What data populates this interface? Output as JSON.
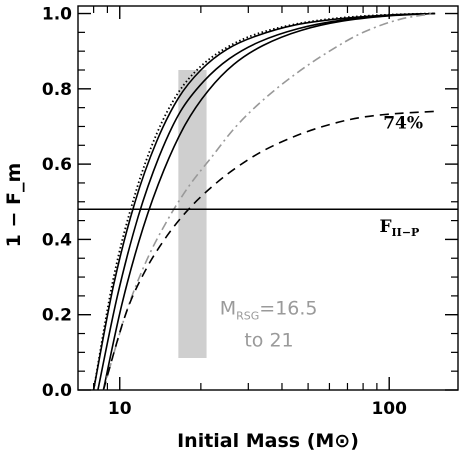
{
  "chart_data": {
    "type": "line",
    "xlabel": "Initial Mass (M⊙)",
    "ylabel": "1 − F_m",
    "xscale": "log",
    "xlim": [
      7,
      180
    ],
    "ylim": [
      0,
      1.02
    ],
    "x_tick_labels": [
      {
        "value": 10,
        "label": "10"
      },
      {
        "value": 100,
        "label": "100"
      }
    ],
    "x_minor_ticks": [
      8,
      9,
      20,
      30,
      40,
      50,
      60,
      70,
      80,
      90
    ],
    "y_tick_labels": [
      {
        "value": 0.0,
        "label": "0.0"
      },
      {
        "value": 0.2,
        "label": "0.2"
      },
      {
        "value": 0.4,
        "label": "0.4"
      },
      {
        "value": 0.6,
        "label": "0.6"
      },
      {
        "value": 0.8,
        "label": "0.8"
      },
      {
        "value": 1.0,
        "label": "1.0"
      }
    ],
    "y_minor_step": 0.05,
    "series": [
      {
        "style": "dotted",
        "color": "#000000",
        "x": [
          8.0,
          9.5,
          11.4,
          13.7,
          16.5,
          20,
          25,
          32,
          45,
          65,
          100,
          148
        ],
        "y": [
          0.0,
          0.3,
          0.52,
          0.68,
          0.79,
          0.86,
          0.91,
          0.945,
          0.972,
          0.988,
          0.997,
          1.0
        ]
      },
      {
        "style": "solid",
        "color": "#000000",
        "x": [
          8.0,
          9.5,
          11.4,
          13.7,
          16.5,
          20,
          25,
          32,
          45,
          65,
          100,
          148
        ],
        "y": [
          0.0,
          0.28,
          0.5,
          0.66,
          0.775,
          0.85,
          0.905,
          0.94,
          0.97,
          0.986,
          0.996,
          1.0
        ]
      },
      {
        "style": "solid",
        "color": "#000000",
        "x": [
          8.3,
          9.8,
          11.7,
          14,
          16.8,
          20.5,
          25.5,
          33,
          46,
          66,
          100,
          148
        ],
        "y": [
          0.0,
          0.25,
          0.46,
          0.62,
          0.74,
          0.82,
          0.88,
          0.925,
          0.96,
          0.982,
          0.995,
          1.0
        ]
      },
      {
        "style": "solid",
        "color": "#000000",
        "x": [
          8.7,
          10.2,
          12.2,
          14.6,
          17.5,
          21.3,
          26.5,
          34,
          47,
          67,
          100,
          148
        ],
        "y": [
          0.0,
          0.23,
          0.43,
          0.585,
          0.705,
          0.795,
          0.865,
          0.915,
          0.955,
          0.98,
          0.994,
          1.0
        ]
      },
      {
        "style": "dash-dot",
        "color": "#999999",
        "x": [
          8.7,
          10.5,
          12.5,
          15,
          18,
          22,
          27,
          34,
          45,
          60,
          80,
          110,
          148
        ],
        "y": [
          0.0,
          0.2,
          0.34,
          0.45,
          0.54,
          0.62,
          0.7,
          0.77,
          0.84,
          0.9,
          0.95,
          0.985,
          1.0
        ]
      },
      {
        "style": "dashed",
        "color": "#000000",
        "x": [
          8.7,
          10.5,
          12.5,
          15,
          18,
          22,
          27,
          34,
          45,
          60,
          80,
          110,
          148
        ],
        "y": [
          0.0,
          0.2,
          0.32,
          0.41,
          0.48,
          0.54,
          0.59,
          0.635,
          0.675,
          0.705,
          0.725,
          0.735,
          0.74
        ]
      }
    ],
    "hline": {
      "y": 0.48
    },
    "band": {
      "x_range": [
        16.5,
        21
      ],
      "y_range": [
        0.085,
        0.85
      ],
      "color": "#cfcfcf"
    },
    "annotations": [
      {
        "id": "pct",
        "text": "74%",
        "x": 95,
        "y": 0.695
      },
      {
        "id": "fiip",
        "main": "F",
        "sub": "II−P",
        "x": 92,
        "y": 0.42
      },
      {
        "id": "mrsg",
        "main": "M",
        "sub": "RSG",
        "rest": "=16.5",
        "x": 23.5,
        "y": 0.2
      },
      {
        "id": "to21",
        "text": "to 21",
        "x": 29,
        "y": 0.115
      }
    ]
  }
}
